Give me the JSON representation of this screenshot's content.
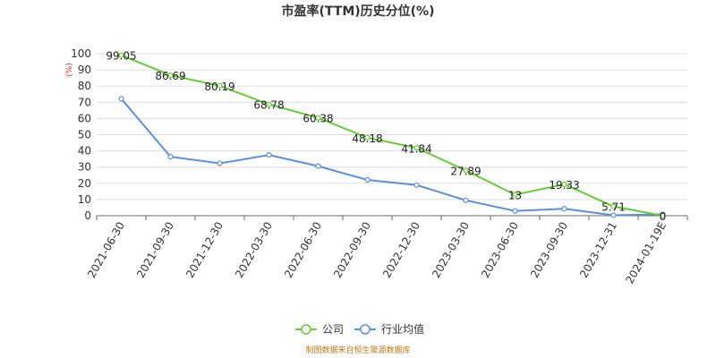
{
  "chart_data": {
    "type": "line",
    "title": "市盈率(TTM)历史分位(%)",
    "ylabel": "(%)",
    "categories": [
      "2021-06-30",
      "2021-09-30",
      "2021-12-30",
      "2022-03-30",
      "2022-06-30",
      "2022-09-30",
      "2022-12-30",
      "2023-03-30",
      "2023-06-30",
      "2023-09-30",
      "2023-12-31",
      "2024-01-19E"
    ],
    "ylim": [
      0,
      100
    ],
    "yticks": [
      0,
      10,
      20,
      30,
      40,
      50,
      60,
      70,
      80,
      90,
      100
    ],
    "grid": true,
    "legend_position": "bottom",
    "series": [
      {
        "name": "公司",
        "color": "#66cc33",
        "values": [
          99.05,
          86.69,
          80.19,
          68.78,
          60.38,
          48.18,
          41.84,
          27.89,
          13,
          19.33,
          5.71,
          0
        ],
        "labels": [
          "99.05",
          "86.69",
          "80.19",
          "68.78",
          "60.38",
          "48.18",
          "41.84",
          "27.89",
          "13",
          "19.33",
          "5.71",
          "0"
        ]
      },
      {
        "name": "行业均值",
        "color": "#5b8fdf",
        "values": [
          72.2,
          36.4,
          32.3,
          37.5,
          30.6,
          22.1,
          18.9,
          9.5,
          2.9,
          4.3,
          0.3,
          0.8
        ]
      }
    ]
  },
  "source_text": "制图数据来自恒生聚源数据库",
  "colors": {
    "unit": "#dd2222",
    "source": "#c07a1a",
    "grid": "#dddddd",
    "axis": "#666666"
  }
}
